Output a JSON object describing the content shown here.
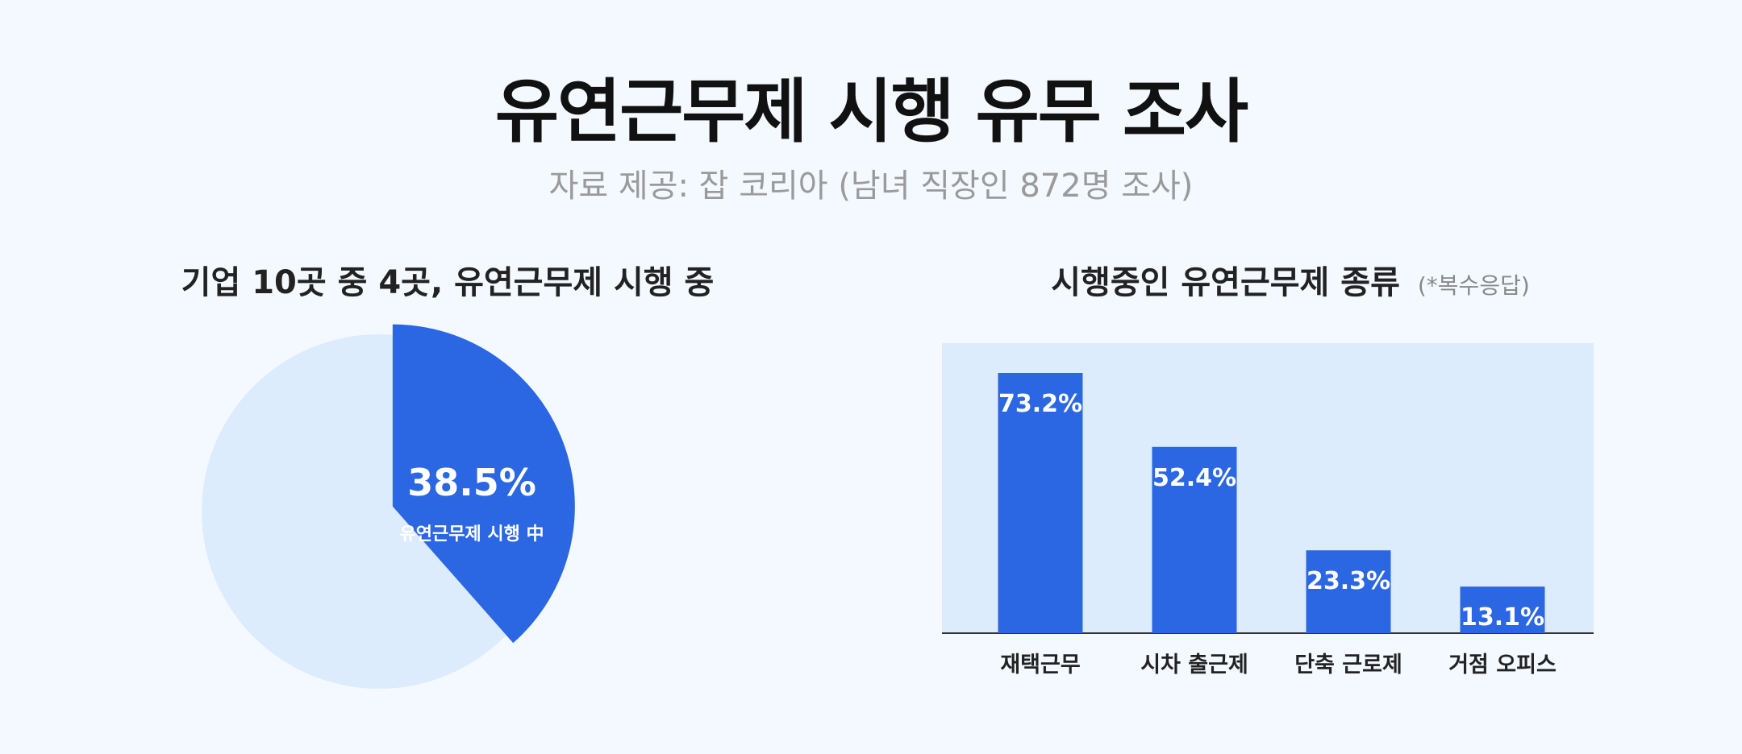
{
  "title": "유연근무제 시행 유무 조사",
  "subtitle": "자료 제공: 잡 코리아 (남녀 직장인 872명 조사)",
  "colors": {
    "accent": "#2b67e3",
    "light": "#dcecfc",
    "background": "#f3f9ff"
  },
  "left_chart": {
    "heading": "기업 10곳 중 4곳, 유연근무제 시행 중",
    "center_value": "38.5%",
    "center_label": "유연근무제 시행 中"
  },
  "right_chart": {
    "heading": "시행중인 유연근무제 종류",
    "note": "(*복수응답)"
  },
  "chart_data": [
    {
      "type": "pie",
      "title": "기업 10곳 중 4곳, 유연근무제 시행 중",
      "slices": [
        {
          "label": "유연근무제 시행 中",
          "value": 38.5,
          "color": "#2b67e3"
        },
        {
          "label": "",
          "value": 61.5,
          "color": "#dcecfc"
        }
      ]
    },
    {
      "type": "bar",
      "title": "시행중인 유연근무제 종류",
      "categories": [
        "재택근무",
        "시차 출근제",
        "단축 근로제",
        "거점 오피스"
      ],
      "values": [
        73.2,
        52.4,
        23.3,
        13.1
      ],
      "value_labels": [
        "73.2%",
        "52.4%",
        "23.3%",
        "13.1%"
      ],
      "ylim": [
        0,
        80
      ],
      "color": "#2b67e3",
      "plot_background": "#dcecfc"
    }
  ]
}
